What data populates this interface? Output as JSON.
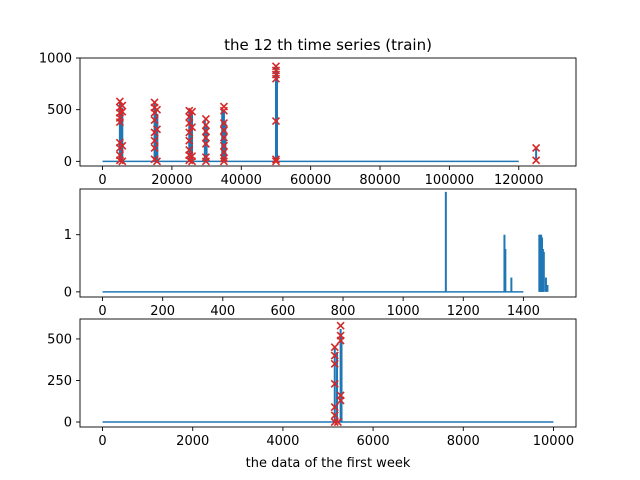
{
  "chart_data": [
    {
      "type": "line",
      "title": "the 12 th time series (train)",
      "xlabel": "",
      "ylabel": "",
      "xlim": [
        -6500,
        136500
      ],
      "ylim": [
        -45,
        1000
      ],
      "xticks": [
        0,
        20000,
        40000,
        60000,
        80000,
        100000,
        120000
      ],
      "yticks": [
        0,
        500,
        1000
      ],
      "line_color": "#1f77b4",
      "marker_color": "#d62728",
      "marker_symbol": "x",
      "series_spikes": [
        {
          "x": 5000,
          "y": 560
        },
        {
          "x": 5300,
          "y": 480
        },
        {
          "x": 5700,
          "y": 520
        },
        {
          "x": 15000,
          "y": 560
        },
        {
          "x": 15400,
          "y": 500
        },
        {
          "x": 15800,
          "y": 460
        },
        {
          "x": 25000,
          "y": 480
        },
        {
          "x": 25400,
          "y": 470
        },
        {
          "x": 25800,
          "y": 450
        },
        {
          "x": 29500,
          "y": 400
        },
        {
          "x": 30000,
          "y": 350
        },
        {
          "x": 34500,
          "y": 520
        },
        {
          "x": 35000,
          "y": 500
        },
        {
          "x": 35400,
          "y": 380
        },
        {
          "x": 50000,
          "y": 920
        },
        {
          "x": 50300,
          "y": 880
        },
        {
          "x": 125000,
          "y": 130
        }
      ],
      "anomalies": [
        {
          "x": 5000,
          "y": 580
        },
        {
          "x": 5000,
          "y": 520
        },
        {
          "x": 5000,
          "y": 470
        },
        {
          "x": 5000,
          "y": 420
        },
        {
          "x": 5000,
          "y": 380
        },
        {
          "x": 5000,
          "y": 180
        },
        {
          "x": 5000,
          "y": 130
        },
        {
          "x": 5000,
          "y": 60
        },
        {
          "x": 5000,
          "y": 10
        },
        {
          "x": 5700,
          "y": 540
        },
        {
          "x": 5700,
          "y": 480
        },
        {
          "x": 5700,
          "y": 150
        },
        {
          "x": 5700,
          "y": 0
        },
        {
          "x": 15000,
          "y": 570
        },
        {
          "x": 15000,
          "y": 520
        },
        {
          "x": 15000,
          "y": 470
        },
        {
          "x": 15000,
          "y": 400
        },
        {
          "x": 15000,
          "y": 280
        },
        {
          "x": 15000,
          "y": 200
        },
        {
          "x": 15000,
          "y": 130
        },
        {
          "x": 15000,
          "y": 20
        },
        {
          "x": 15700,
          "y": 500
        },
        {
          "x": 15700,
          "y": 310
        },
        {
          "x": 15700,
          "y": 0
        },
        {
          "x": 25000,
          "y": 490
        },
        {
          "x": 25000,
          "y": 430
        },
        {
          "x": 25000,
          "y": 370
        },
        {
          "x": 25000,
          "y": 280
        },
        {
          "x": 25000,
          "y": 200
        },
        {
          "x": 25000,
          "y": 110
        },
        {
          "x": 25000,
          "y": 60
        },
        {
          "x": 25000,
          "y": 10
        },
        {
          "x": 25800,
          "y": 480
        },
        {
          "x": 25800,
          "y": 330
        },
        {
          "x": 25800,
          "y": 50
        },
        {
          "x": 25800,
          "y": 0
        },
        {
          "x": 29800,
          "y": 410
        },
        {
          "x": 29800,
          "y": 350
        },
        {
          "x": 29800,
          "y": 290
        },
        {
          "x": 29800,
          "y": 230
        },
        {
          "x": 29800,
          "y": 170
        },
        {
          "x": 29800,
          "y": 40
        },
        {
          "x": 29800,
          "y": 0
        },
        {
          "x": 35000,
          "y": 530
        },
        {
          "x": 35000,
          "y": 490
        },
        {
          "x": 35000,
          "y": 370
        },
        {
          "x": 35000,
          "y": 300
        },
        {
          "x": 35000,
          "y": 230
        },
        {
          "x": 35000,
          "y": 150
        },
        {
          "x": 35000,
          "y": 90
        },
        {
          "x": 35000,
          "y": 30
        },
        {
          "x": 35000,
          "y": 0
        },
        {
          "x": 50000,
          "y": 920
        },
        {
          "x": 50000,
          "y": 880
        },
        {
          "x": 50000,
          "y": 840
        },
        {
          "x": 50000,
          "y": 800
        },
        {
          "x": 50000,
          "y": 390
        },
        {
          "x": 50000,
          "y": 20
        },
        {
          "x": 50000,
          "y": 0
        },
        {
          "x": 125000,
          "y": 130
        },
        {
          "x": 125000,
          "y": 10
        }
      ]
    },
    {
      "type": "line",
      "title": "",
      "xlabel": "",
      "ylabel": "",
      "xlim": [
        -75,
        1575
      ],
      "ylim": [
        -0.09,
        1.8
      ],
      "xticks": [
        0,
        200,
        400,
        600,
        800,
        1000,
        1200,
        1400
      ],
      "yticks": [
        0,
        1
      ],
      "line_color": "#1f77b4",
      "spikes": [
        {
          "x": 1142,
          "y": 1.75
        },
        {
          "x": 1337,
          "y": 1.0
        },
        {
          "x": 1340,
          "y": 0.75
        },
        {
          "x": 1360,
          "y": 0.25
        },
        {
          "x": 1453,
          "y": 1.0
        },
        {
          "x": 1456,
          "y": 1.0
        },
        {
          "x": 1459,
          "y": 1.0
        },
        {
          "x": 1462,
          "y": 0.95
        },
        {
          "x": 1465,
          "y": 0.75
        },
        {
          "x": 1468,
          "y": 0.7
        },
        {
          "x": 1475,
          "y": 0.25
        },
        {
          "x": 1480,
          "y": 0.12
        }
      ]
    },
    {
      "type": "line",
      "title": "",
      "xlabel": "the data of the first week",
      "ylabel": "",
      "xlim": [
        -500,
        10500
      ],
      "ylim": [
        -30,
        620
      ],
      "xticks": [
        0,
        2000,
        4000,
        6000,
        8000,
        10000
      ],
      "yticks": [
        0,
        250,
        500
      ],
      "line_color": "#1f77b4",
      "marker_color": "#d62728",
      "marker_symbol": "x",
      "series_spikes": [
        {
          "x": 5150,
          "y": 450
        },
        {
          "x": 5200,
          "y": 420
        },
        {
          "x": 5280,
          "y": 560
        },
        {
          "x": 5300,
          "y": 520
        }
      ],
      "anomalies": [
        {
          "x": 5150,
          "y": 450
        },
        {
          "x": 5150,
          "y": 400
        },
        {
          "x": 5150,
          "y": 350
        },
        {
          "x": 5150,
          "y": 230
        },
        {
          "x": 5150,
          "y": 90
        },
        {
          "x": 5150,
          "y": 40
        },
        {
          "x": 5150,
          "y": 0
        },
        {
          "x": 5280,
          "y": 580
        },
        {
          "x": 5280,
          "y": 520
        },
        {
          "x": 5280,
          "y": 490
        },
        {
          "x": 5280,
          "y": 160
        },
        {
          "x": 5280,
          "y": 130
        },
        {
          "x": 5220,
          "y": 0
        }
      ]
    }
  ]
}
